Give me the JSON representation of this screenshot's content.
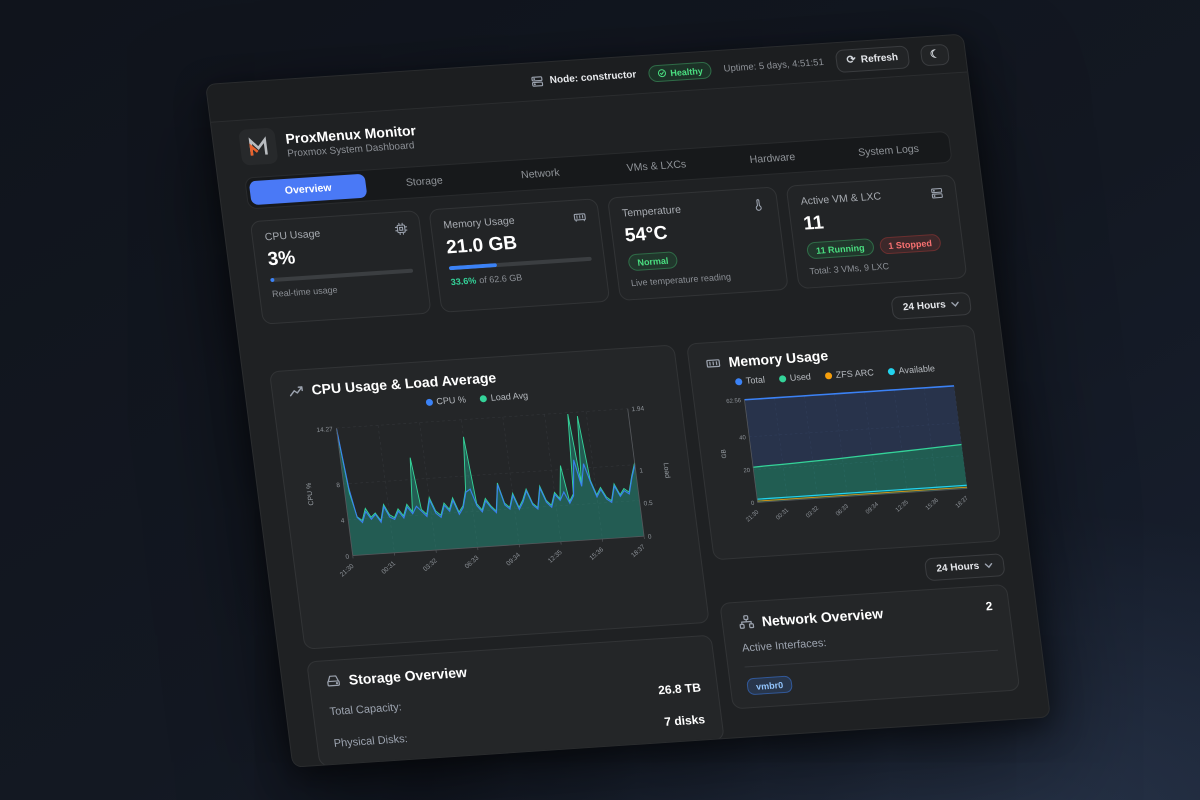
{
  "topbar": {
    "node_label": "Node: constructor",
    "health_badge": "Healthy",
    "uptime": "Uptime: 5 days, 4:51:51",
    "refresh_label": "Refresh"
  },
  "header": {
    "title": "ProxMenux Monitor",
    "subtitle": "Proxmox System Dashboard"
  },
  "tabs": [
    {
      "label": "Overview",
      "active": true
    },
    {
      "label": "Storage"
    },
    {
      "label": "Network"
    },
    {
      "label": "VMs & LXCs"
    },
    {
      "label": "Hardware"
    },
    {
      "label": "System Logs"
    }
  ],
  "cards": {
    "cpu": {
      "title": "CPU Usage",
      "value": "3%",
      "percent": 3,
      "caption": "Real-time usage"
    },
    "memory": {
      "title": "Memory Usage",
      "value": "21.0 GB",
      "percent": 33.6,
      "percent_text": "33.6%",
      "caption_rest": "of 62.6 GB"
    },
    "temperature": {
      "title": "Temperature",
      "value": "54°C",
      "badge": "Normal",
      "caption": "Live temperature reading"
    },
    "vms": {
      "title": "Active VM & LXC",
      "value": "11",
      "running_badge": "11 Running",
      "stopped_badge": "1 Stopped",
      "caption": "Total: 3 VMs, 9 LXC"
    }
  },
  "time_selector": "24 Hours",
  "chart_data": [
    {
      "type": "area",
      "title": "CPU Usage & Load Average",
      "legend": [
        "CPU %",
        "Load Avg"
      ],
      "x_ticks": [
        "21:30",
        "00:31",
        "03:32",
        "06:33",
        "09:34",
        "12:35",
        "15:36",
        "18:37"
      ],
      "y_left": {
        "label": "CPU %",
        "tick_labels": [
          "0",
          "4",
          "8",
          "14.27"
        ],
        "max": 14.27
      },
      "y_right": {
        "label": "Load",
        "tick_labels": [
          "0",
          "0.5",
          "1",
          "1.94"
        ],
        "max": 1.94
      },
      "grid": true,
      "series": [
        {
          "name": "CPU %",
          "color": "#3b82f6",
          "axis": "left",
          "values": [
            14.2,
            7.5,
            4.2,
            3.6,
            4.8,
            3.9,
            4.4,
            3.5,
            5.2,
            4,
            3.7,
            4.6,
            3.8,
            5,
            4.2,
            5,
            4.4,
            3.8,
            5.6,
            4.1,
            3.6,
            4.9,
            4.2,
            5.4,
            3.8,
            4.5,
            6.2,
            6.5,
            4.6,
            3.9,
            5.1,
            4.3,
            3.7,
            6.8,
            4.5,
            4,
            5.5,
            3.9,
            4.7,
            5.9,
            4.3,
            3.8,
            6.1,
            4.5,
            3.9,
            5.3,
            4.6,
            5.5,
            4.2,
            5,
            9,
            6,
            8.5,
            6.4,
            4.7,
            5.5,
            4.4,
            4,
            5.8,
            4.6,
            5.2,
            4.8,
            6.6,
            8
          ]
        },
        {
          "name": "Load Avg",
          "color": "#34d399",
          "axis": "right",
          "values": [
            1.9,
            0.95,
            0.58,
            0.52,
            0.7,
            0.56,
            0.62,
            0.5,
            0.74,
            0.58,
            0.53,
            0.66,
            0.55,
            0.72,
            0.6,
            1.42,
            0.63,
            0.55,
            0.8,
            0.59,
            0.52,
            0.7,
            0.6,
            0.77,
            0.55,
            0.64,
            0.88,
            1.68,
            0.66,
            0.56,
            0.73,
            0.61,
            0.53,
            0.95,
            0.64,
            0.57,
            0.78,
            0.56,
            0.67,
            0.83,
            0.61,
            0.54,
            0.86,
            0.64,
            0.56,
            0.75,
            0.65,
            1.15,
            0.6,
            0.71,
            1.92,
            0.84,
            1.88,
            0.9,
            0.67,
            0.78,
            0.63,
            0.57,
            0.82,
            0.65,
            0.74,
            0.68,
            0.92,
            1.12
          ]
        }
      ]
    },
    {
      "type": "area",
      "title": "Memory Usage",
      "legend": [
        "Total",
        "Used",
        "ZFS ARC",
        "Available"
      ],
      "x_ticks": [
        "21:30",
        "00:31",
        "03:32",
        "06:33",
        "09:34",
        "12:35",
        "15:36",
        "18:37"
      ],
      "y": {
        "label": "GB",
        "tick_labels": [
          "0",
          "20",
          "40",
          "62.56"
        ],
        "max": 62.56
      },
      "grid": true,
      "series": [
        {
          "name": "Total",
          "color": "#3b82f6",
          "values": [
            62.56,
            62.56,
            62.56,
            62.56,
            62.56,
            62.56,
            62.56,
            62.56,
            62.56,
            62.56,
            62.56,
            62.56,
            62.56,
            62.56,
            62.56,
            62.56
          ]
        },
        {
          "name": "Used",
          "color": "#34d399",
          "values": [
            21.5,
            21.8,
            22,
            22.3,
            22.6,
            22.9,
            23.2,
            23.6,
            24,
            24.4,
            24.8,
            25.2,
            25.6,
            26,
            26.4,
            26.8
          ]
        },
        {
          "name": "ZFS ARC",
          "color": "#f59e0b",
          "values": [
            0.8,
            0.8,
            0.8,
            0.8,
            0.8,
            0.8,
            0.8,
            0.8,
            0.8,
            0.8,
            0.8,
            0.8,
            0.8,
            0.8,
            0.8,
            0.8
          ]
        },
        {
          "name": "Available",
          "color": "#22d3ee",
          "values": [
            2,
            2,
            2,
            2,
            2,
            2,
            2,
            2,
            2,
            2,
            2,
            2,
            2,
            2,
            2,
            2
          ]
        }
      ]
    }
  ],
  "storage": {
    "title": "Storage Overview",
    "rows": [
      {
        "label": "Total Capacity:",
        "value": "26.8 TB"
      },
      {
        "label": "Physical Disks:",
        "value": "7 disks"
      }
    ]
  },
  "network": {
    "title": "Network Overview",
    "count": "2",
    "interfaces_label": "Active Interfaces:",
    "badge": "vmbr0"
  },
  "colors": {
    "accent_blue": "#3b82f6",
    "green": "#34d399",
    "orange": "#f59e0b",
    "cyan": "#22d3ee",
    "red": "#f87171",
    "tab_active": "#4a79f6"
  }
}
